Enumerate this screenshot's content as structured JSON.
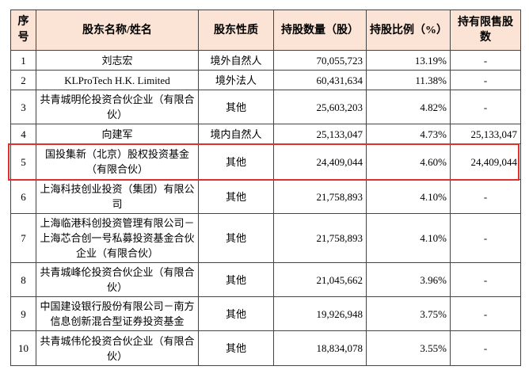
{
  "table": {
    "columns": [
      "序号",
      "股东名称/姓名",
      "股东性质",
      "持股数量（股）",
      "持股比例（%）",
      "持有限售股数"
    ],
    "rows": [
      [
        "1",
        "刘志宏",
        "境外自然人",
        "70,055,723",
        "13.19%",
        "-"
      ],
      [
        "2",
        "KLProTech H.K. Limited",
        "境外法人",
        "60,431,634",
        "11.38%",
        "-"
      ],
      [
        "3",
        "共青城明伦投资合伙企业（有限合伙）",
        "其他",
        "25,603,203",
        "4.82%",
        "-"
      ],
      [
        "4",
        "向建军",
        "境内自然人",
        "25,133,047",
        "4.73%",
        "25,133,047"
      ],
      [
        "5",
        "国投集新（北京）股权投资基金（有限合伙）",
        "其他",
        "24,409,044",
        "4.60%",
        "24,409,044"
      ],
      [
        "6",
        "上海科技创业投资（集团）有限公司",
        "其他",
        "21,758,893",
        "4.10%",
        "-"
      ],
      [
        "7",
        "上海临港科创投资管理有限公司－上海芯合创一号私募投资基金合伙企业（有限合伙）",
        "其他",
        "21,758,893",
        "4.10%",
        "-"
      ],
      [
        "8",
        "共青城峰伦投资合伙企业（有限合伙）",
        "其他",
        "21,045,662",
        "3.96%",
        "-"
      ],
      [
        "9",
        "中国建设银行股份有限公司－南方信息创新混合型证券投资基金",
        "其他",
        "19,926,948",
        "3.75%",
        "-"
      ],
      [
        "10",
        "共青城伟伦投资合伙企业（有限合伙）",
        "其他",
        "18,834,078",
        "3.55%",
        "-"
      ]
    ]
  }
}
